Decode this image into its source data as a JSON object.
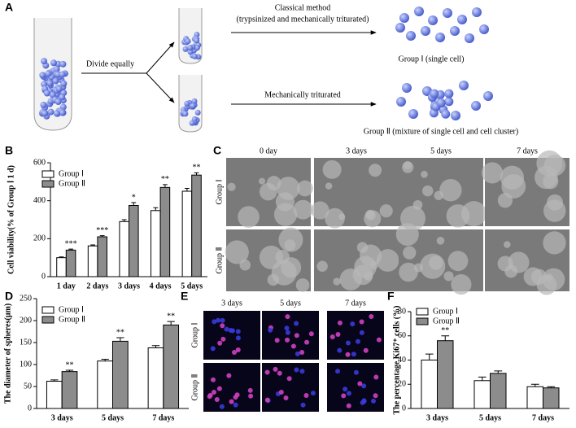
{
  "panel_a": {
    "panel": "A",
    "divide": "Divide equally",
    "method_1": "Classical method",
    "method_1_detail": "(trypsinized and mechanically triturated)",
    "group_1": "Group Ⅰ (single cell)",
    "method_2": "Mechanically triturated",
    "group_2": "Group Ⅱ (mixture of single cell and cell cluster)"
  },
  "panel_c": {
    "panel": "C",
    "columns": [
      "0 day",
      "3 days",
      "5 days",
      "7 days"
    ],
    "rows": [
      "Group Ⅰ",
      "Group Ⅱ"
    ]
  },
  "panel_e": {
    "panel": "E",
    "columns": [
      "3 days",
      "5 days",
      "7 days"
    ],
    "rows": [
      "Group Ⅰ",
      "Group Ⅱ"
    ]
  },
  "chart_data": [
    {
      "type": "bar",
      "panel": "B",
      "y_label": "Cell viability(% of Group Ⅰ 1 d)",
      "categories": [
        "1 day",
        "2 days",
        "3 days",
        "4 days",
        "5 days"
      ],
      "series": [
        {
          "name": "Group Ⅰ",
          "color": "#ffffff",
          "values": [
            100,
            162,
            290,
            348,
            450
          ],
          "errors": [
            4,
            5,
            10,
            15,
            15
          ]
        },
        {
          "name": "Group Ⅱ",
          "color": "#8c8c8c",
          "values": [
            140,
            210,
            375,
            470,
            535
          ],
          "errors": [
            5,
            6,
            15,
            15,
            12
          ]
        }
      ],
      "significance": [
        "***",
        "***",
        "*",
        "**",
        "**"
      ],
      "ylim": [
        0,
        600
      ],
      "yticks": [
        0,
        200,
        400,
        600
      ],
      "legend": "upper left"
    },
    {
      "type": "bar",
      "panel": "D",
      "y_label": "The diameter of spheres(μm)",
      "categories": [
        "3 days",
        "5 days",
        "7 days"
      ],
      "series": [
        {
          "name": "Group Ⅰ",
          "color": "#ffffff",
          "values": [
            62,
            108,
            138
          ],
          "errors": [
            3,
            4,
            5
          ]
        },
        {
          "name": "Group Ⅱ",
          "color": "#8c8c8c",
          "values": [
            84,
            153,
            190
          ],
          "errors": [
            3,
            8,
            8
          ]
        }
      ],
      "significance": [
        "**",
        "**",
        "**"
      ],
      "ylim": [
        0,
        250
      ],
      "yticks": [
        0,
        50,
        100,
        150,
        200,
        250
      ],
      "legend": "upper left"
    },
    {
      "type": "bar",
      "panel": "F",
      "y_label": "The percentage Ki67⁺ cells (%)",
      "categories": [
        "3 days",
        "5 days",
        "7 days"
      ],
      "series": [
        {
          "name": "Group Ⅰ",
          "color": "#ffffff",
          "values": [
            40,
            23,
            18
          ],
          "errors": [
            5,
            3,
            2
          ]
        },
        {
          "name": "Group Ⅱ",
          "color": "#8c8c8c",
          "values": [
            56,
            29,
            17
          ],
          "errors": [
            4,
            2,
            1
          ]
        }
      ],
      "significance": [
        "**",
        null,
        null
      ],
      "ylim": [
        0,
        80
      ],
      "yticks": [
        0,
        20,
        40,
        60,
        80
      ],
      "legend": "upper left"
    }
  ]
}
